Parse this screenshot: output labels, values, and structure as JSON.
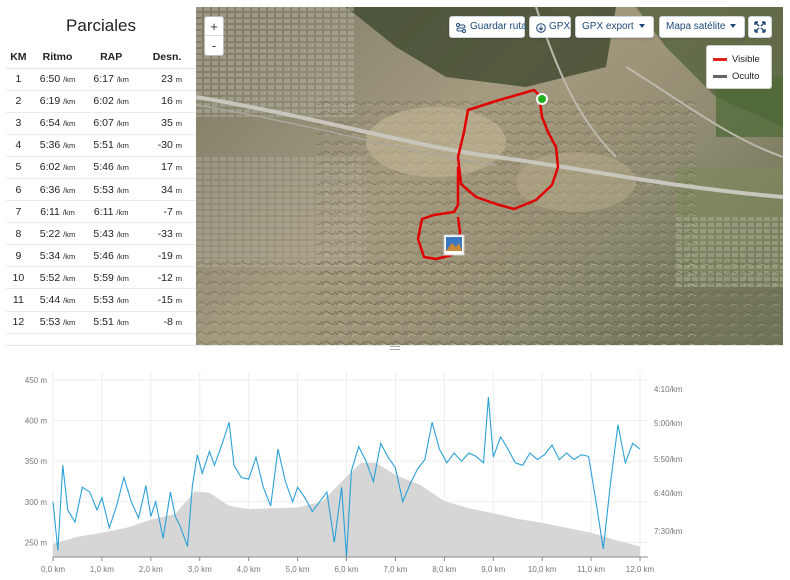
{
  "splits": {
    "title": "Parciales",
    "headers": [
      "KM",
      "Ritmo",
      "RAP",
      "Desn."
    ],
    "unit_pace": "/km",
    "unit_elev": "m",
    "rows": [
      {
        "km": "1",
        "pace": "6:50",
        "rap": "6:17",
        "elev": "23"
      },
      {
        "km": "2",
        "pace": "6:19",
        "rap": "6:02",
        "elev": "16"
      },
      {
        "km": "3",
        "pace": "6:54",
        "rap": "6:07",
        "elev": "35"
      },
      {
        "km": "4",
        "pace": "5:36",
        "rap": "5:51",
        "elev": "-30"
      },
      {
        "km": "5",
        "pace": "6:02",
        "rap": "5:46",
        "elev": "17"
      },
      {
        "km": "6",
        "pace": "6:36",
        "rap": "5:53",
        "elev": "34"
      },
      {
        "km": "7",
        "pace": "6:11",
        "rap": "6:11",
        "elev": "-7"
      },
      {
        "km": "8",
        "pace": "5:22",
        "rap": "5:43",
        "elev": "-33"
      },
      {
        "km": "9",
        "pace": "5:34",
        "rap": "5:46",
        "elev": "-19"
      },
      {
        "km": "10",
        "pace": "5:52",
        "rap": "5:59",
        "elev": "-12"
      },
      {
        "km": "11",
        "pace": "5:44",
        "rap": "5:53",
        "elev": "-15"
      },
      {
        "km": "12",
        "pace": "5:53",
        "rap": "5:51",
        "elev": "-8"
      }
    ]
  },
  "map": {
    "zoom_in": "+",
    "zoom_out": "-",
    "save_route": "Guardar ruta",
    "gpx": "GPX",
    "gpx_export": "GPX export",
    "map_type": "Mapa satélite",
    "legend": [
      {
        "label": "Visible",
        "color": "#e02020"
      },
      {
        "label": "Oculto",
        "color": "#666666"
      }
    ],
    "route_color": "#e00000",
    "start_marker_color": "#20b020"
  },
  "chart_data": {
    "type": "area",
    "x_unit": "km",
    "x_ticks": [
      "0,0 km",
      "1,0 km",
      "2,0 km",
      "3,0 km",
      "4,0 km",
      "5,0 km",
      "6,0 km",
      "7,0 km",
      "8,0 km",
      "9,0 km",
      "10,0 km",
      "11,0 km",
      "12,0 km"
    ],
    "xlim": [
      0,
      12
    ],
    "y_left_ticks": [
      "250 m",
      "300 m",
      "350 m",
      "400 m",
      "450 m"
    ],
    "ylim_left": [
      232,
      455
    ],
    "y_right_ticks": [
      "4:10/km",
      "5:00/km",
      "5:50/km",
      "6:40/km",
      "7:30/km"
    ],
    "grid": true,
    "elevation_color": "#d6d6d6",
    "pace_color": "#2aa0d8",
    "elevation": {
      "x": [
        0,
        0.5,
        1.0,
        1.5,
        2.0,
        2.5,
        2.9,
        3.2,
        3.6,
        4.0,
        4.5,
        5.0,
        5.5,
        6.0,
        6.3,
        6.6,
        7.0,
        7.5,
        8.0,
        8.5,
        9.0,
        9.5,
        10.0,
        10.5,
        11.0,
        11.5,
        12.0
      ],
      "y": [
        248,
        257,
        262,
        268,
        278,
        285,
        313,
        311,
        295,
        291,
        292,
        293,
        300,
        331,
        348,
        348,
        333,
        321,
        301,
        292,
        286,
        279,
        274,
        268,
        262,
        253,
        245
      ]
    },
    "pace": {
      "x": [
        0,
        0.1,
        0.2,
        0.3,
        0.45,
        0.6,
        0.75,
        0.9,
        1.0,
        1.15,
        1.3,
        1.45,
        1.6,
        1.75,
        1.9,
        2.0,
        2.1,
        2.25,
        2.4,
        2.5,
        2.6,
        2.75,
        2.85,
        2.95,
        3.05,
        3.2,
        3.3,
        3.45,
        3.6,
        3.7,
        3.85,
        4.0,
        4.15,
        4.3,
        4.45,
        4.6,
        4.75,
        4.9,
        5.0,
        5.15,
        5.3,
        5.45,
        5.6,
        5.75,
        5.9,
        6.0,
        6.1,
        6.25,
        6.4,
        6.55,
        6.7,
        6.85,
        7.0,
        7.15,
        7.3,
        7.45,
        7.6,
        7.75,
        7.9,
        8.05,
        8.2,
        8.35,
        8.5,
        8.65,
        8.8,
        8.9,
        9.0,
        9.15,
        9.3,
        9.45,
        9.6,
        9.75,
        9.9,
        10.05,
        10.2,
        10.35,
        10.5,
        10.65,
        10.8,
        10.95,
        11.1,
        11.25,
        11.4,
        11.55,
        11.7,
        11.85,
        12.0
      ],
      "y": [
        300,
        240,
        345,
        290,
        275,
        318,
        312,
        290,
        305,
        268,
        295,
        330,
        300,
        280,
        320,
        282,
        300,
        255,
        312,
        282,
        270,
        245,
        320,
        358,
        335,
        362,
        345,
        370,
        398,
        345,
        330,
        328,
        355,
        318,
        295,
        365,
        325,
        300,
        318,
        305,
        288,
        300,
        312,
        250,
        318,
        232,
        338,
        368,
        350,
        325,
        372,
        355,
        342,
        300,
        322,
        340,
        352,
        398,
        365,
        348,
        360,
        350,
        360,
        356,
        348,
        429,
        355,
        380,
        365,
        348,
        345,
        360,
        352,
        358,
        370,
        352,
        360,
        352,
        358,
        356,
        300,
        242,
        325,
        395,
        348,
        372,
        365
      ]
    }
  }
}
